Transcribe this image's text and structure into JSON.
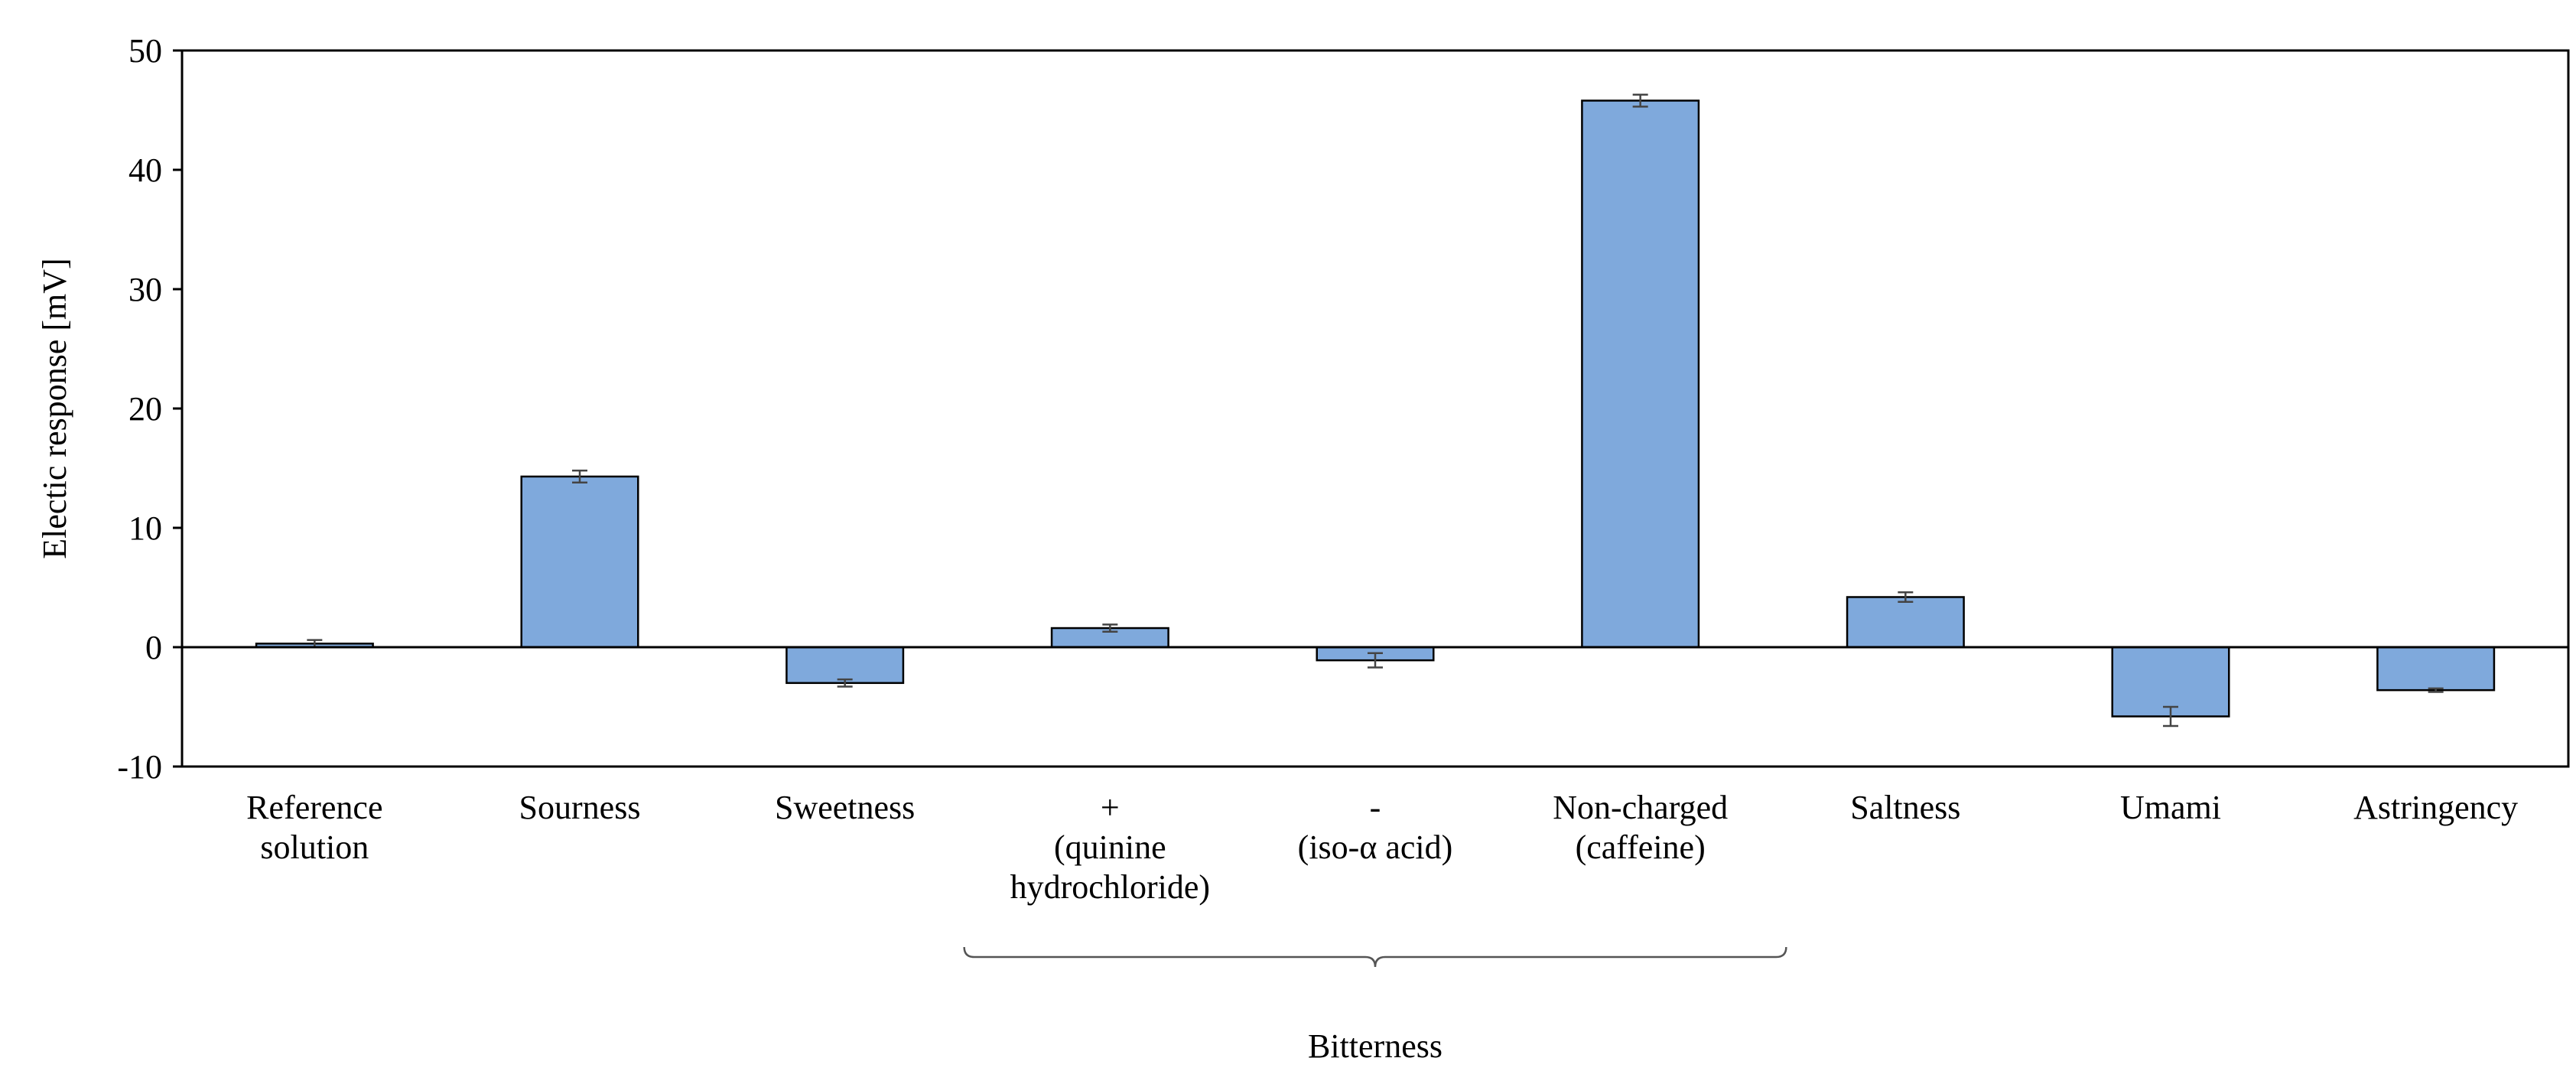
{
  "chart_data": {
    "type": "bar",
    "title": "",
    "xlabel": "",
    "ylabel": "Electic response [mV]",
    "ylim": [
      -10,
      50
    ],
    "yticks": [
      50,
      40,
      30,
      20,
      10,
      0,
      -10
    ],
    "grid": false,
    "legend": "none",
    "bar_color": "#7fa9dc",
    "bar_edge_color": "#000000",
    "categories": [
      [
        "Reference",
        "solution"
      ],
      [
        "Sourness"
      ],
      [
        "Sweetness"
      ],
      [
        "+",
        "(quinine",
        "hydrochloride)"
      ],
      [
        "-",
        "(iso-α acid)"
      ],
      [
        "Non-charged",
        "(caffeine)"
      ],
      [
        "Saltness"
      ],
      [
        "Umami"
      ],
      [
        "Astringency"
      ]
    ],
    "values": [
      0.3,
      14.3,
      -3.0,
      1.6,
      -1.1,
      45.8,
      4.2,
      -5.8,
      -3.6
    ],
    "errors": [
      0.3,
      0.5,
      0.3,
      0.3,
      0.6,
      0.5,
      0.4,
      0.8,
      0.15
    ],
    "group": {
      "label": "Bitterness",
      "from_category": 3,
      "to_category": 5
    }
  }
}
